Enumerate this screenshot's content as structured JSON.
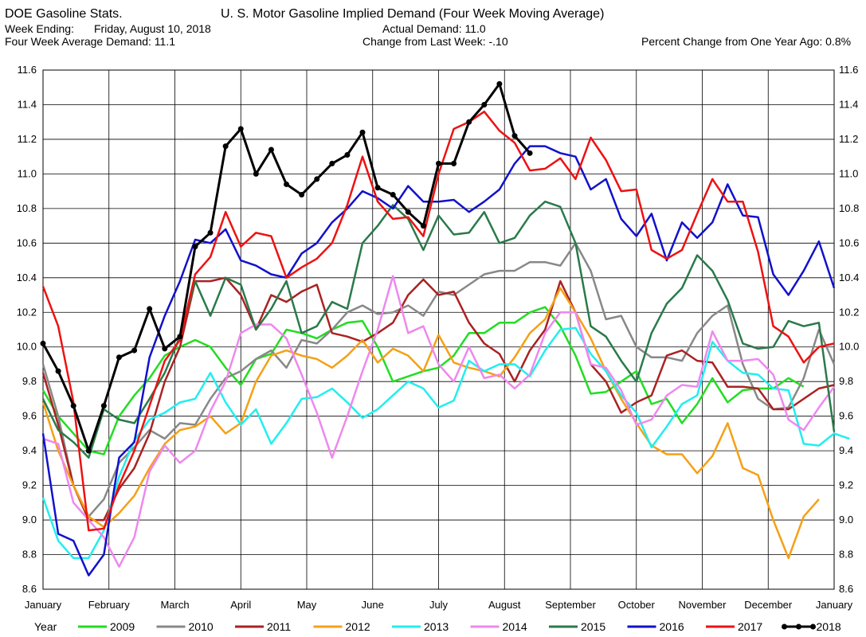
{
  "header": {
    "source_title": "DOE Gasoline Stats.",
    "chart_title": "U. S. Motor Gasoline Implied Demand (Four Week Moving Average)",
    "week_ending_label": "Week Ending:",
    "week_ending_value": "Friday, August 10, 2018",
    "four_week_avg": "Four Week Average Demand: 11.1",
    "actual_demand": "Actual Demand: 11.0",
    "change_last_week": "Change from Last Week: -.10",
    "pct_change_year": "Percent Change from One Year Ago:  0.8%"
  },
  "chart_data": {
    "type": "line",
    "ylim": [
      8.6,
      11.6
    ],
    "yticks": [
      "8.6",
      "8.8",
      "9.0",
      "9.2",
      "9.4",
      "9.6",
      "9.8",
      "10.0",
      "10.2",
      "10.4",
      "10.6",
      "10.8",
      "11.0",
      "11.2",
      "11.4",
      "11.6"
    ],
    "xticks": [
      "January",
      "February",
      "March",
      "April",
      "May",
      "June",
      "July",
      "August",
      "September",
      "October",
      "November",
      "December",
      "January"
    ],
    "xlim": [
      1,
      53
    ],
    "grid": true,
    "legend_title": "Year",
    "legend_position": "bottom",
    "series": [
      {
        "name": "2009",
        "color": "#22dd22",
        "values": [
          9.75,
          9.6,
          9.5,
          9.4,
          9.38,
          9.6,
          9.72,
          9.82,
          9.95,
          10.0,
          10.04,
          10.0,
          9.88,
          9.78,
          9.93,
          9.96,
          10.1,
          10.08,
          10.05,
          10.1,
          10.14,
          10.15,
          10.0,
          9.8,
          9.83,
          9.86,
          9.88,
          9.95,
          10.08,
          10.08,
          10.14,
          10.14,
          10.2,
          10.23,
          10.12,
          9.95,
          9.73,
          9.74,
          9.8,
          9.86,
          9.67,
          9.7,
          9.56,
          9.67,
          9.82,
          9.68,
          9.75,
          9.76,
          9.76,
          9.82,
          9.77
        ]
      },
      {
        "name": "2010",
        "color": "#888888",
        "values": [
          9.9,
          9.6,
          9.2,
          9.02,
          9.12,
          9.33,
          9.42,
          9.52,
          9.47,
          9.56,
          9.55,
          9.7,
          9.82,
          9.86,
          9.93,
          9.98,
          9.88,
          10.04,
          10.02,
          10.1,
          10.2,
          10.24,
          10.19,
          10.2,
          10.24,
          10.18,
          10.32,
          10.3,
          10.36,
          10.42,
          10.44,
          10.44,
          10.49,
          10.49,
          10.47,
          10.6,
          10.44,
          10.16,
          10.18,
          10.0,
          9.94,
          9.94,
          9.92,
          10.08,
          10.18,
          10.24,
          9.9,
          9.7,
          9.64,
          9.65,
          9.82,
          10.1,
          9.9
        ]
      },
      {
        "name": "2011",
        "color": "#aa2222",
        "values": [
          9.85,
          9.55,
          9.2,
          9.0,
          9.0,
          9.18,
          9.3,
          9.5,
          9.8,
          10.0,
          10.38,
          10.38,
          10.4,
          10.3,
          10.1,
          10.3,
          10.26,
          10.32,
          10.36,
          10.08,
          10.06,
          10.03,
          10.08,
          10.14,
          10.3,
          10.39,
          10.3,
          10.32,
          10.14,
          10.02,
          9.96,
          9.8,
          9.98,
          10.1,
          10.38,
          10.2,
          9.9,
          9.8,
          9.62,
          9.68,
          9.72,
          9.95,
          9.98,
          9.92,
          9.91,
          9.77,
          9.77,
          9.76,
          9.64,
          9.64,
          9.7,
          9.76,
          9.78
        ]
      },
      {
        "name": "2012",
        "color": "#f5a015",
        "values": [
          9.68,
          9.4,
          9.2,
          9.02,
          8.96,
          9.04,
          9.14,
          9.3,
          9.44,
          9.52,
          9.54,
          9.6,
          9.5,
          9.56,
          9.8,
          9.95,
          9.98,
          9.95,
          9.93,
          9.88,
          9.95,
          10.04,
          9.91,
          9.99,
          9.95,
          9.86,
          10.07,
          9.91,
          9.88,
          9.86,
          9.83,
          9.94,
          10.08,
          10.16,
          10.34,
          10.2,
          10.05,
          9.86,
          9.7,
          9.56,
          9.43,
          9.38,
          9.38,
          9.27,
          9.37,
          9.56,
          9.3,
          9.26,
          9.0,
          8.78,
          9.02,
          9.12
        ]
      },
      {
        "name": "2013",
        "color": "#22eeee",
        "values": [
          9.13,
          8.88,
          8.78,
          8.78,
          8.94,
          9.25,
          9.46,
          9.58,
          9.62,
          9.68,
          9.7,
          9.85,
          9.68,
          9.55,
          9.64,
          9.44,
          9.56,
          9.7,
          9.71,
          9.76,
          9.68,
          9.59,
          9.64,
          9.72,
          9.8,
          9.76,
          9.65,
          9.69,
          9.92,
          9.86,
          9.9,
          9.9,
          9.83,
          9.98,
          10.1,
          10.11,
          9.96,
          9.86,
          9.72,
          9.62,
          9.42,
          9.54,
          9.67,
          9.72,
          10.03,
          9.92,
          9.85,
          9.84,
          9.76,
          9.75,
          9.44,
          9.43,
          9.5,
          9.47
        ]
      },
      {
        "name": "2014",
        "color": "#ee88ee",
        "values": [
          9.47,
          9.44,
          9.1,
          9.0,
          8.9,
          8.73,
          8.9,
          9.28,
          9.43,
          9.33,
          9.4,
          9.63,
          9.8,
          10.08,
          10.13,
          10.13,
          10.05,
          9.84,
          9.62,
          9.36,
          9.6,
          9.86,
          10.1,
          10.41,
          10.08,
          10.12,
          9.9,
          9.8,
          10.0,
          9.82,
          9.84,
          9.76,
          9.84,
          10.08,
          10.2,
          10.2,
          9.9,
          9.88,
          9.75,
          9.55,
          9.58,
          9.72,
          9.78,
          9.77,
          10.09,
          9.92,
          9.92,
          9.93,
          9.84,
          9.58,
          9.52,
          9.65,
          9.77
        ]
      },
      {
        "name": "2015",
        "color": "#2a7a4a",
        "values": [
          9.7,
          9.52,
          9.45,
          9.36,
          9.64,
          9.58,
          9.56,
          9.7,
          9.85,
          10.06,
          10.38,
          10.18,
          10.4,
          10.36,
          10.1,
          10.22,
          10.38,
          10.08,
          10.12,
          10.26,
          10.22,
          10.6,
          10.7,
          10.82,
          10.74,
          10.56,
          10.76,
          10.65,
          10.66,
          10.78,
          10.6,
          10.63,
          10.76,
          10.84,
          10.81,
          10.6,
          10.12,
          10.06,
          9.92,
          9.8,
          10.08,
          10.25,
          10.34,
          10.53,
          10.44,
          10.27,
          10.02,
          9.99,
          10.0,
          10.15,
          10.12,
          10.14,
          9.51
        ]
      },
      {
        "name": "2016",
        "color": "#1111cc",
        "values": [
          9.5,
          8.92,
          8.88,
          8.68,
          8.8,
          9.36,
          9.45,
          9.94,
          10.18,
          10.38,
          10.62,
          10.6,
          10.68,
          10.5,
          10.47,
          10.42,
          10.4,
          10.54,
          10.6,
          10.72,
          10.8,
          10.9,
          10.86,
          10.8,
          10.93,
          10.84,
          10.84,
          10.85,
          10.78,
          10.84,
          10.91,
          11.06,
          11.16,
          11.16,
          11.12,
          11.1,
          10.91,
          10.97,
          10.74,
          10.64,
          10.77,
          10.5,
          10.72,
          10.63,
          10.72,
          10.94,
          10.76,
          10.75,
          10.42,
          10.3,
          10.44,
          10.61,
          10.34
        ]
      },
      {
        "name": "2017",
        "color": "#ee1111",
        "values": [
          10.35,
          10.12,
          9.68,
          8.94,
          8.95,
          9.2,
          9.4,
          9.66,
          9.92,
          10.04,
          10.42,
          10.52,
          10.78,
          10.58,
          10.66,
          10.64,
          10.4,
          10.46,
          10.51,
          10.6,
          10.82,
          11.1,
          10.84,
          10.74,
          10.75,
          10.64,
          11.0,
          11.26,
          11.3,
          11.36,
          11.25,
          11.18,
          11.02,
          11.03,
          11.09,
          10.97,
          11.21,
          11.08,
          10.9,
          10.91,
          10.56,
          10.51,
          10.56,
          10.77,
          10.97,
          10.84,
          10.84,
          10.55,
          10.12,
          10.06,
          9.91,
          10.0,
          10.02
        ]
      },
      {
        "name": "2018",
        "color": "#000000",
        "values": [
          10.02,
          9.86,
          9.66,
          9.4,
          9.66,
          9.94,
          9.98,
          10.22,
          9.99,
          10.06,
          10.58,
          10.66,
          11.16,
          11.26,
          11.0,
          11.14,
          10.94,
          10.88,
          10.97,
          11.06,
          11.11,
          11.24,
          10.92,
          10.88,
          10.78,
          10.7,
          11.06,
          11.06,
          11.3,
          11.4,
          11.52,
          11.22,
          11.12
        ]
      }
    ]
  }
}
